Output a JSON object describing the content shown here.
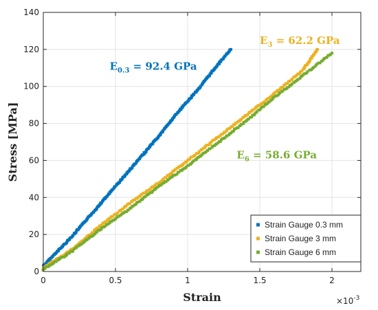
{
  "chart_data": {
    "type": "scatter",
    "xlabel": "Strain",
    "ylabel": "Stress [MPa]",
    "x_multiplier": "×10",
    "x_exponent": "-3",
    "xlim": [
      0,
      2.2
    ],
    "ylim": [
      0,
      140
    ],
    "x_ticks": [
      0,
      0.5,
      1,
      1.5,
      2
    ],
    "x_tick_labels": [
      "0",
      "0.5",
      "1",
      "1.5",
      "2"
    ],
    "y_ticks": [
      0,
      20,
      40,
      60,
      80,
      100,
      120,
      140
    ],
    "y_tick_labels": [
      "0",
      "20",
      "40",
      "60",
      "80",
      "100",
      "120",
      "140"
    ],
    "grid": true,
    "legend_position": "bottom-right",
    "series": [
      {
        "name": "Strain Gauge 0.3 mm",
        "color": "#0072BD",
        "x": [
          0,
          0.1,
          0.2,
          0.3,
          0.4,
          0.5,
          0.6,
          0.7,
          0.8,
          0.9,
          1.0,
          1.1,
          1.2,
          1.3
        ],
        "y": [
          3,
          11,
          19,
          28,
          37,
          46,
          55,
          64,
          73,
          83,
          92,
          101,
          111,
          120
        ]
      },
      {
        "name": "Strain Gauge 3 mm",
        "color": "#EDB120",
        "x": [
          0,
          0.2,
          0.4,
          0.6,
          0.8,
          1.0,
          1.2,
          1.4,
          1.6,
          1.8,
          1.9
        ],
        "y": [
          2,
          12,
          25,
          37,
          48,
          60,
          72,
          84,
          96,
          109,
          120
        ]
      },
      {
        "name": "Strain Gauge 6 mm",
        "color": "#77AC30",
        "x": [
          0,
          0.2,
          0.4,
          0.6,
          0.8,
          1.0,
          1.2,
          1.4,
          1.6,
          1.8,
          2.0
        ],
        "y": [
          1,
          11,
          23,
          34,
          46,
          57,
          69,
          81,
          94,
          106,
          118
        ]
      }
    ],
    "annotations": [
      {
        "main": "E",
        "sub": "0.3",
        "rest": " = 92.4 GPa",
        "color": "#0072BD",
        "x": 0.46,
        "y": 109
      },
      {
        "main": "E",
        "sub": "3",
        "rest": " = 62.2 GPa",
        "color": "#EDB120",
        "x": 1.5,
        "y": 123
      },
      {
        "main": "E",
        "sub": "6",
        "rest": " = 58.6 GPa",
        "color": "#77AC30",
        "x": 1.34,
        "y": 61
      }
    ]
  }
}
